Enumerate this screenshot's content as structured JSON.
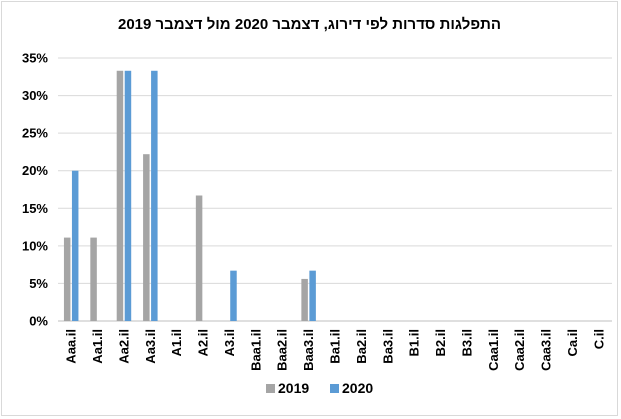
{
  "chart_data": {
    "type": "bar",
    "title": "התפלגות סדרות לפי דירוג, דצמבר 2020 מול דצמבר 2019",
    "xlabel": "",
    "ylabel": "",
    "categories": [
      "Aaa.il",
      "Aa1.il",
      "Aa2.il",
      "Aa3.il",
      "A1.il",
      "A2.il",
      "A3.il",
      "Baa1.il",
      "Baa2.il",
      "Baa3.il",
      "Ba1.il",
      "Ba2.il",
      "Ba3.il",
      "B1.il",
      "B2.il",
      "B3.il",
      "Caa1.il",
      "Caa2.il",
      "Caa3.il",
      "Ca.il",
      "C.il"
    ],
    "series": [
      {
        "name": "2019",
        "color": "#a5a5a5",
        "values": [
          11.1,
          11.1,
          33.3,
          22.2,
          0,
          16.7,
          0,
          0,
          0,
          5.6,
          0,
          0,
          0,
          0,
          0,
          0,
          0,
          0,
          0,
          0,
          0
        ]
      },
      {
        "name": "2020",
        "color": "#5b9bd5",
        "values": [
          20.0,
          0,
          33.3,
          33.3,
          0,
          0,
          6.7,
          0,
          0,
          6.7,
          0,
          0,
          0,
          0,
          0,
          0,
          0,
          0,
          0,
          0,
          0
        ]
      }
    ],
    "ylim": [
      0,
      35
    ],
    "yticks": [
      0,
      5,
      10,
      15,
      20,
      25,
      30,
      35
    ],
    "ytick_labels": [
      "0%",
      "5%",
      "10%",
      "15%",
      "20%",
      "25%",
      "30%",
      "35%"
    ],
    "grid": true,
    "legend_position": "bottom"
  }
}
